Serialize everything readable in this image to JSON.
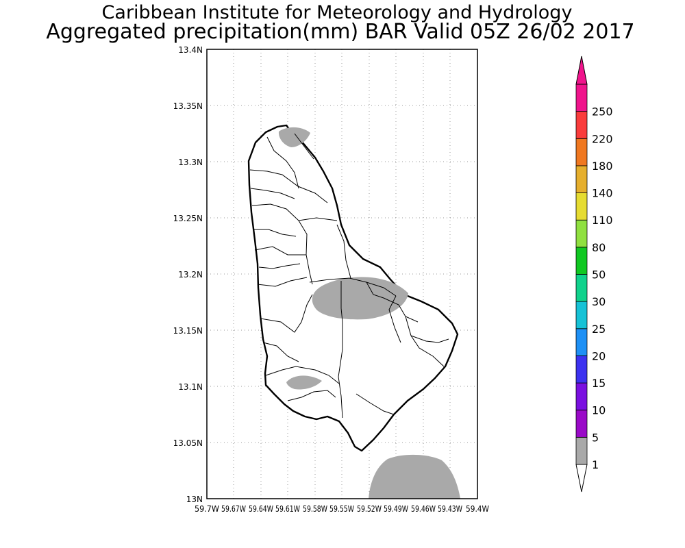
{
  "header": {
    "institute": "Caribbean Institute for Meteorology and Hydrology",
    "product": "Aggregated precipitation(mm) BAR Valid 05Z 26/02 2017"
  },
  "map": {
    "lat_ticks": [
      "13N",
      "13.05N",
      "13.1N",
      "13.15N",
      "13.2N",
      "13.25N",
      "13.3N",
      "13.35N",
      "13.4N"
    ],
    "lon_ticks": [
      "59.7W",
      "59.67W",
      "59.64W",
      "59.61W",
      "59.58W",
      "59.55W",
      "59.52W",
      "59.49W",
      "59.46W",
      "59.43W",
      "59.4W"
    ],
    "lat_range": [
      13.0,
      13.4
    ],
    "lon_range": [
      -59.7,
      -59.4
    ],
    "grid": true,
    "land_fill": "#ffffff",
    "coastline_color": "#000000",
    "precip_areas_color": "#a9a9a9"
  },
  "colorbar": {
    "levels": [
      "1",
      "5",
      "10",
      "15",
      "20",
      "25",
      "30",
      "50",
      "80",
      "110",
      "140",
      "180",
      "220",
      "250"
    ],
    "colors": [
      "#a9a9a9",
      "#9a0ac8",
      "#7a10e0",
      "#3c32f0",
      "#1e90f5",
      "#16c2d6",
      "#10d28c",
      "#10c822",
      "#90e040",
      "#e6dc32",
      "#e6af2d",
      "#f07820",
      "#fa3c3c",
      "#f0148c"
    ],
    "below_color": "#ffffff",
    "above_color": "#f0148c"
  }
}
